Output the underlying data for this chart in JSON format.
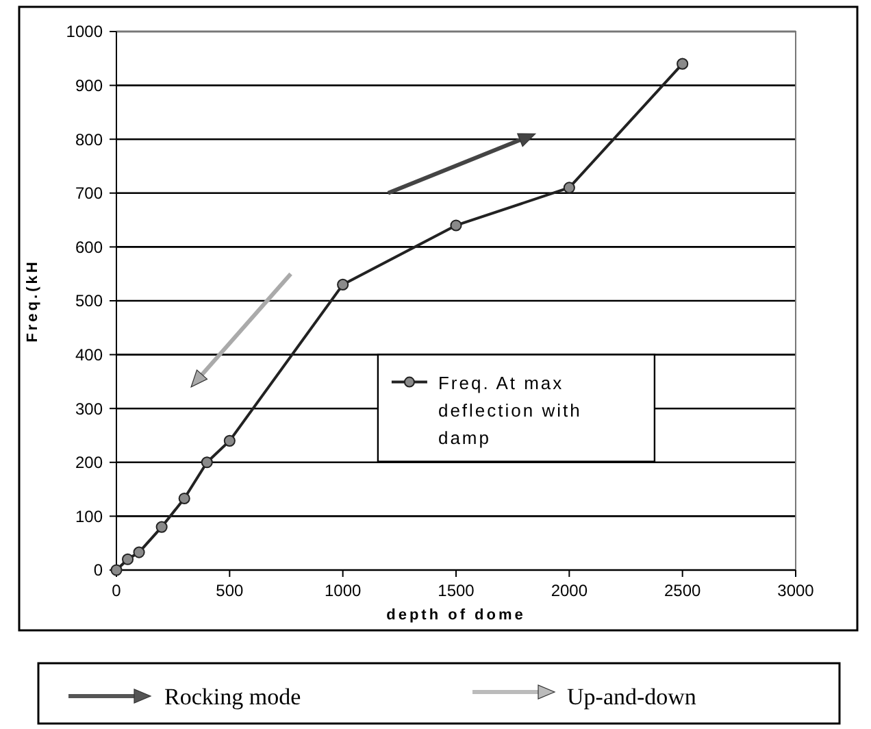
{
  "chart_data": {
    "type": "line",
    "xlabel": "depth of dome",
    "ylabel": "Freq.(kH",
    "x": [
      0,
      50,
      100,
      200,
      300,
      400,
      500,
      1000,
      1500,
      2000,
      2500
    ],
    "series": [
      {
        "name": "Freq. At max deflection with damp",
        "color": "#222222",
        "values": [
          0,
          20,
          33,
          80,
          133,
          200,
          240,
          530,
          640,
          710,
          940
        ]
      }
    ],
    "xlim": [
      0,
      3000
    ],
    "xticks": [
      0,
      500,
      1000,
      1500,
      2000,
      2500,
      3000
    ],
    "ylim": [
      0,
      1000
    ],
    "yticks": [
      0,
      100,
      200,
      300,
      400,
      500,
      600,
      700,
      800,
      900,
      1000
    ],
    "grid": "y",
    "legend": "right",
    "marker": "circle",
    "line_style": "solid",
    "annotations": [
      "Rocking mode",
      "Up-and-down"
    ]
  }
}
